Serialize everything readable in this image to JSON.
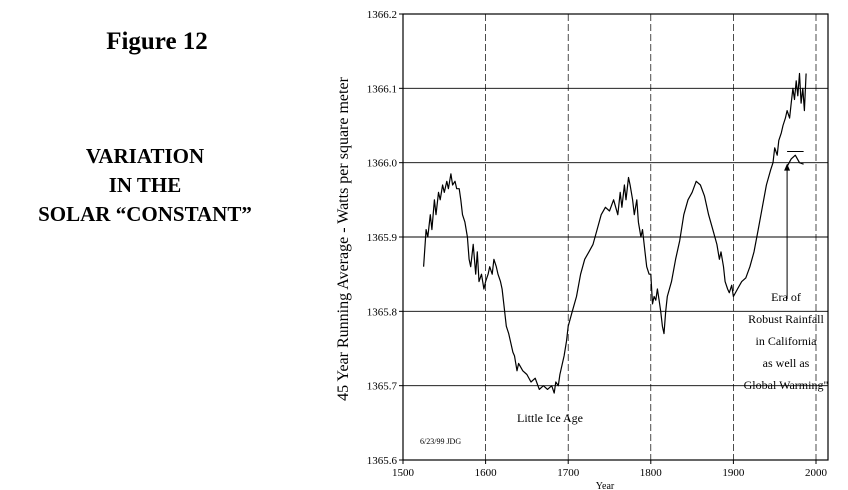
{
  "figure": {
    "number_label": "Figure 12",
    "caption_lines": [
      "VARIATION",
      "IN THE",
      "SOLAR “CONSTANT”"
    ]
  },
  "chart_data": {
    "type": "line",
    "title": "",
    "xlabel": "Year",
    "ylabel": "45 Year Running Average - Watts per square meter",
    "xlim": [
      1500,
      2000
    ],
    "ylim": [
      1365.6,
      1366.2
    ],
    "x_ticks": [
      "1500",
      "1600",
      "1700",
      "1800",
      "1900",
      "2000"
    ],
    "y_ticks": [
      "1365.6",
      "1365.7",
      "1365.8",
      "1365.9",
      "1366.0",
      "1366.1",
      "1366.2"
    ],
    "grid": true,
    "series": [
      {
        "color": "#000000",
        "x": [
          1525,
          1528,
          1530,
          1533,
          1535,
          1538,
          1540,
          1543,
          1545,
          1548,
          1550,
          1553,
          1555,
          1558,
          1560,
          1563,
          1565,
          1568,
          1570,
          1572,
          1575,
          1578,
          1580,
          1582,
          1585,
          1588,
          1590,
          1592,
          1595,
          1598,
          1600,
          1603,
          1605,
          1608,
          1610,
          1613,
          1615,
          1618,
          1620,
          1622,
          1625,
          1628,
          1630,
          1633,
          1635,
          1638,
          1640,
          1645,
          1650,
          1655,
          1660,
          1665,
          1670,
          1675,
          1680,
          1683,
          1685,
          1688,
          1690,
          1693,
          1695,
          1698,
          1700,
          1705,
          1710,
          1715,
          1720,
          1725,
          1730,
          1735,
          1740,
          1745,
          1750,
          1755,
          1760,
          1763,
          1765,
          1768,
          1770,
          1773,
          1775,
          1778,
          1780,
          1783,
          1785,
          1788,
          1790,
          1793,
          1795,
          1798,
          1800,
          1802,
          1804,
          1806,
          1808,
          1810,
          1812,
          1814,
          1816,
          1818,
          1820,
          1825,
          1830,
          1835,
          1840,
          1845,
          1850,
          1855,
          1860,
          1865,
          1870,
          1875,
          1880,
          1883,
          1885,
          1888,
          1890,
          1893,
          1895,
          1898,
          1900,
          1905,
          1910,
          1915,
          1920,
          1925,
          1930,
          1935,
          1940,
          1945,
          1948,
          1950,
          1953,
          1955,
          1958,
          1960,
          1963,
          1965,
          1968,
          1970,
          1972,
          1974,
          1976,
          1978,
          1980,
          1982,
          1984,
          1986,
          1988
        ],
        "values": [
          1365.86,
          1365.91,
          1365.9,
          1365.93,
          1365.91,
          1365.95,
          1365.93,
          1365.96,
          1365.95,
          1365.97,
          1365.96,
          1365.975,
          1365.965,
          1365.985,
          1365.97,
          1365.975,
          1365.965,
          1365.965,
          1365.95,
          1365.93,
          1365.92,
          1365.9,
          1365.87,
          1365.86,
          1365.89,
          1365.85,
          1365.88,
          1365.84,
          1365.85,
          1365.83,
          1365.84,
          1365.85,
          1365.86,
          1365.85,
          1365.87,
          1365.86,
          1365.85,
          1365.84,
          1365.83,
          1365.81,
          1365.78,
          1365.77,
          1365.76,
          1365.745,
          1365.74,
          1365.72,
          1365.73,
          1365.72,
          1365.715,
          1365.705,
          1365.71,
          1365.695,
          1365.7,
          1365.695,
          1365.7,
          1365.69,
          1365.705,
          1365.7,
          1365.715,
          1365.73,
          1365.74,
          1365.76,
          1365.78,
          1365.8,
          1365.82,
          1365.85,
          1365.87,
          1365.88,
          1365.89,
          1365.91,
          1365.93,
          1365.94,
          1365.935,
          1365.95,
          1365.93,
          1365.96,
          1365.94,
          1365.97,
          1365.95,
          1365.98,
          1365.97,
          1365.95,
          1365.93,
          1365.95,
          1365.92,
          1365.9,
          1365.91,
          1365.88,
          1365.86,
          1365.85,
          1365.85,
          1365.81,
          1365.82,
          1365.815,
          1365.83,
          1365.815,
          1365.8,
          1365.78,
          1365.77,
          1365.8,
          1365.82,
          1365.84,
          1365.87,
          1365.895,
          1365.93,
          1365.95,
          1365.96,
          1365.975,
          1365.97,
          1365.955,
          1365.93,
          1365.91,
          1365.89,
          1365.87,
          1365.88,
          1365.86,
          1365.84,
          1365.83,
          1365.825,
          1365.835,
          1365.82,
          1365.83,
          1365.84,
          1365.845,
          1365.86,
          1365.88,
          1365.91,
          1365.94,
          1365.97,
          1365.99,
          1366.0,
          1366.02,
          1366.01,
          1366.03,
          1366.04,
          1366.05,
          1366.06,
          1366.07,
          1366.06,
          1366.08,
          1366.1,
          1366.085,
          1366.11,
          1366.09,
          1366.12,
          1366.08,
          1366.1,
          1366.07,
          1366.12
        ]
      },
      {
        "color": "#000000",
        "x": [
          1965,
          1970,
          1975,
          1980,
          1985
        ],
        "values": [
          1365.995,
          1366.005,
          1366.01,
          1366.0,
          1365.998
        ]
      }
    ],
    "annotations": {
      "little_ice_age": "Little Ice Age",
      "era_lines": [
        "Era of",
        "Robust Rainfall",
        "in California",
        "as well as",
        "Global Warming\""
      ],
      "stamp": "6/23/99 JDG"
    },
    "arrow": {
      "label_year": 1965,
      "from_value": 1365.8,
      "to_value": 1366.0
    },
    "ref_segment": {
      "x": [
        1965,
        1985
      ],
      "value": 1366.015
    }
  }
}
